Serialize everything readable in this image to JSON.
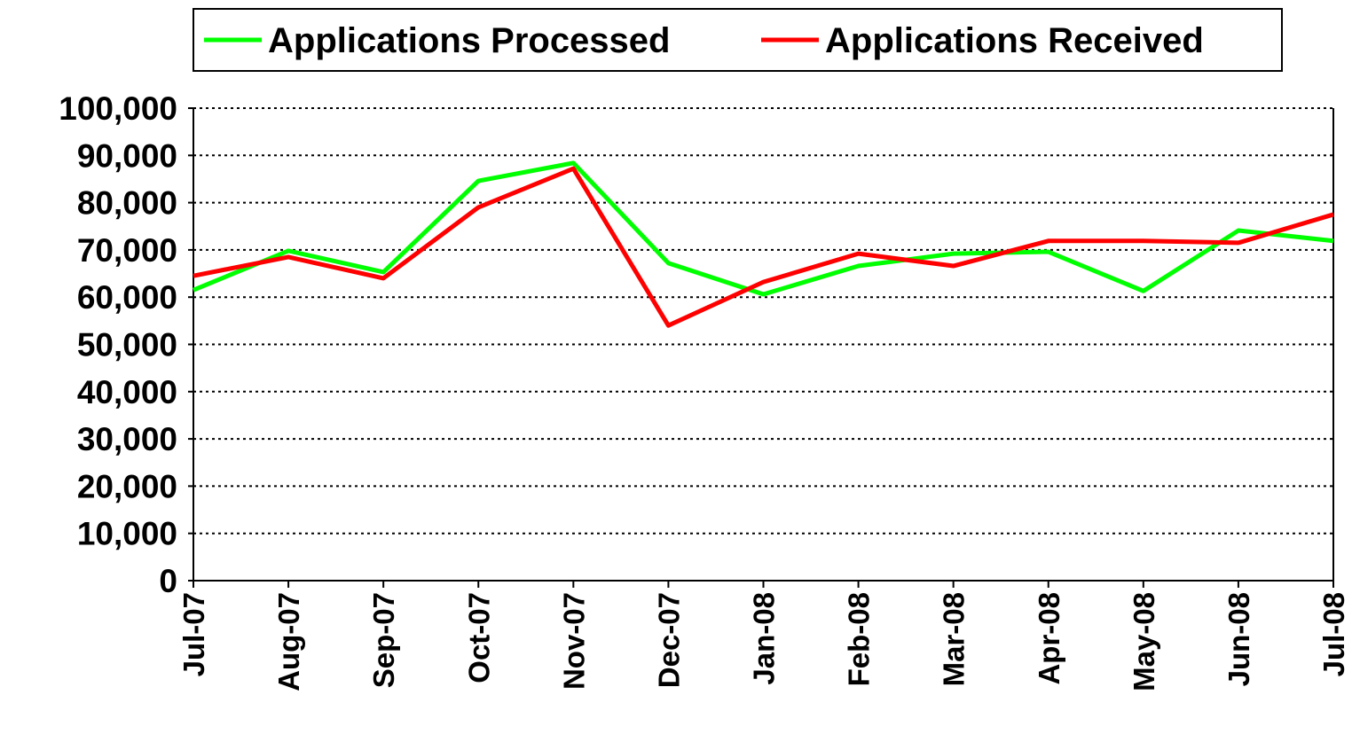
{
  "chart_data": {
    "type": "line",
    "categories": [
      "Jul-07",
      "Aug-07",
      "Sep-07",
      "Oct-07",
      "Nov-07",
      "Dec-07",
      "Jan-08",
      "Feb-08",
      "Mar-08",
      "Apr-08",
      "May-08",
      "Jun-08",
      "Jul-08"
    ],
    "series": [
      {
        "name": "Applications Processed",
        "color": "#00ff00",
        "values": [
          61500,
          69800,
          65300,
          84600,
          88400,
          67200,
          60600,
          66600,
          69200,
          69600,
          61300,
          74100,
          71900
        ]
      },
      {
        "name": "Applications Received",
        "color": "#ff0000",
        "values": [
          64500,
          68500,
          64000,
          79000,
          87200,
          54000,
          63200,
          69200,
          66600,
          71900,
          71900,
          71500,
          77500
        ]
      }
    ],
    "ylim": [
      0,
      100000
    ],
    "yticks": [
      0,
      {
        "value": 10000,
        "label": "10,000"
      },
      {
        "value": 20000,
        "label": "20,000"
      },
      {
        "value": 30000,
        "label": "30,000"
      },
      {
        "value": 40000,
        "label": "40,000"
      },
      {
        "value": 50000,
        "label": "50,000"
      },
      {
        "value": 60000,
        "label": "60,000"
      },
      {
        "value": 70000,
        "label": "70,000"
      },
      {
        "value": 80000,
        "label": "80,000"
      },
      {
        "value": 90000,
        "label": "90,000"
      },
      {
        "value": 100000,
        "label": "100,000"
      }
    ],
    "grid": true,
    "legend": "top"
  }
}
